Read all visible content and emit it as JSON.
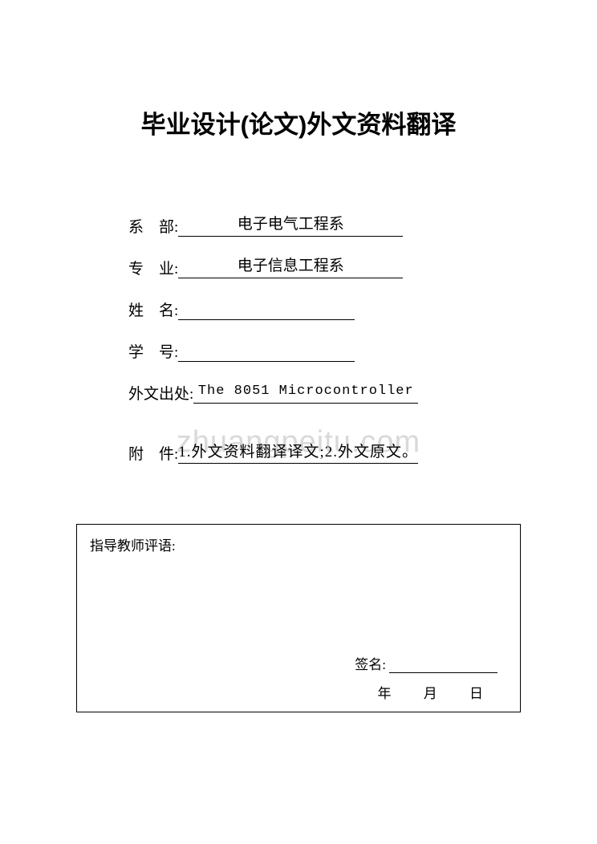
{
  "title": "毕业设计(论文)外文资料翻译",
  "fields": {
    "dept_label": "系    部:",
    "dept_value": "电子电气工程系",
    "major_label": "专    业:",
    "major_value": "电子信息工程系",
    "name_label": "姓    名:",
    "name_value": "",
    "id_label": "学    号:",
    "id_value": "",
    "source_label": "外文出处:",
    "source_value": "The  8051  Microcontroller",
    "attach_label": "附    件:",
    "attach_value": "1.外文资料翻译译文;2.外文原文。"
  },
  "watermark": "zhuangpeitu.com",
  "comment": {
    "heading": "指导教师评语:",
    "sign_label": "签名:",
    "date_text": "年 月 日"
  },
  "colors": {
    "text": "#000000",
    "background": "#ffffff",
    "watermark": "#d9d9d9",
    "border": "#000000"
  }
}
